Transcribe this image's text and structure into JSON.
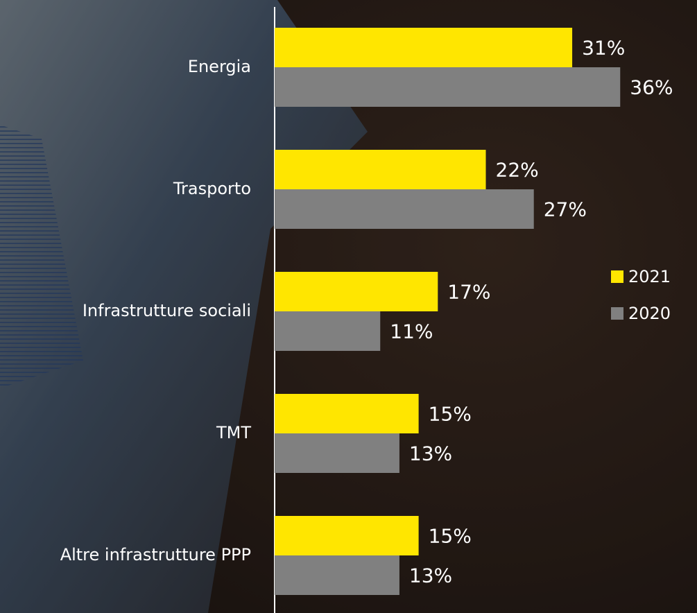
{
  "chart_data": {
    "type": "bar",
    "orientation": "horizontal",
    "categories": [
      "Energia",
      "Trasporto",
      "Infrastrutture sociali",
      "TMT",
      "Altre infrastrutture PPP"
    ],
    "series": [
      {
        "name": "2021",
        "color": "#ffe600",
        "values": [
          31,
          22,
          17,
          15,
          15
        ],
        "value_labels": [
          "31%",
          "22%",
          "17%",
          "15%",
          "15%"
        ]
      },
      {
        "name": "2020",
        "color": "#808080",
        "values": [
          36,
          27,
          11,
          13,
          13
        ],
        "value_labels": [
          "36%",
          "27%",
          "11%",
          "13%",
          "13%"
        ]
      }
    ],
    "xlim": [
      0,
      44
    ],
    "legend": "right"
  }
}
